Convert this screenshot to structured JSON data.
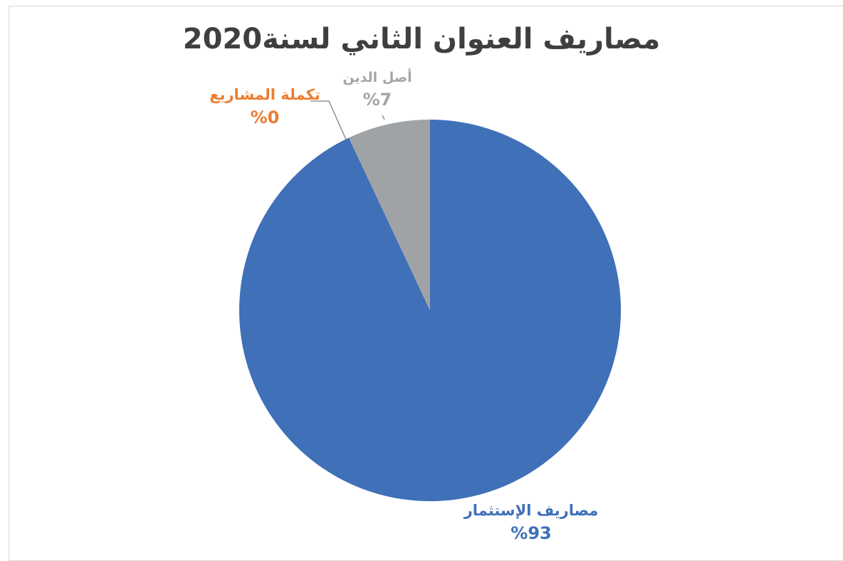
{
  "chart_data": {
    "type": "pie",
    "title": "مصاريف العنوان الثاني لسنة2020",
    "slices": [
      {
        "label": "مصاريف الإستثمار",
        "value": 93,
        "value_label": "%93",
        "color": "#3F70B8"
      },
      {
        "label": "تكملة المشاريع",
        "value": 0,
        "value_label": "%0",
        "color": "#ED7D31"
      },
      {
        "label": "أصل الدين",
        "value": 7,
        "value_label": "%7",
        "color": "#A0A3A5"
      }
    ],
    "label_colors": {
      "مصاريف الإستثمار": "#3F70B8",
      "تكملة المشاريع": "#ED7D31",
      "أصل الدين": "#A5A5A5"
    }
  }
}
